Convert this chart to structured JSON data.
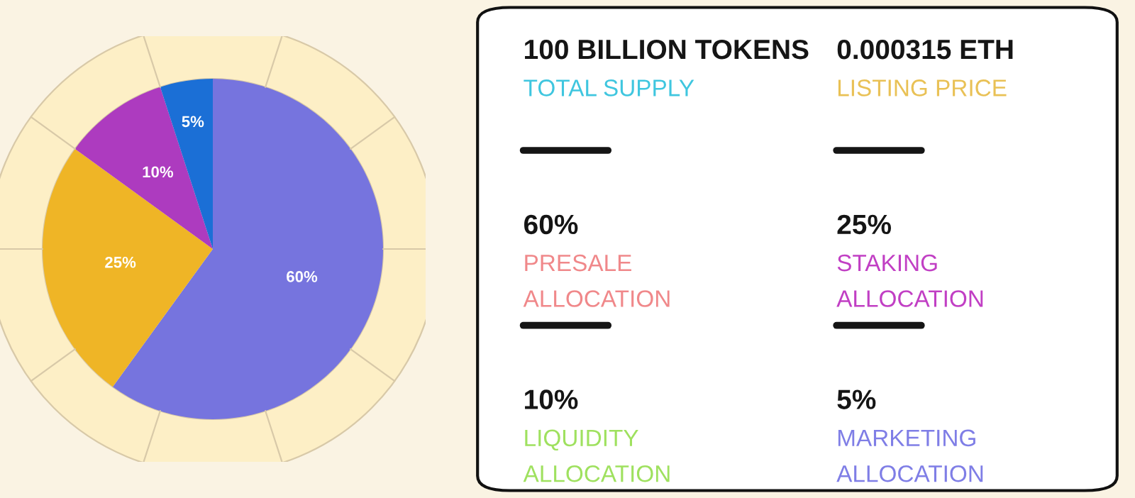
{
  "chart_data": [
    {
      "type": "pie",
      "categories": [
        null,
        null,
        null,
        null
      ],
      "values": [
        60,
        25,
        10,
        5
      ],
      "colors": [
        "#7674de",
        "#efb526",
        "#ad3bbf",
        "#1b6fd6"
      ],
      "value_labels": [
        "60%",
        "25%",
        "10%",
        "5%"
      ]
    },
    {
      "type": "other",
      "annotations": [
        "100 BILLION TOKENS",
        "TOTAL SUPPLY",
        "0.000315 ETH",
        "LISTING PRICE",
        "60%",
        "PRESALE\nALLOCATION",
        "25%",
        "STAKING\nALLOCATION",
        "10%",
        "LIQUIDITY\nALLOCATION",
        "5%",
        "MARKETING\nALLOCATION"
      ]
    }
  ]
}
